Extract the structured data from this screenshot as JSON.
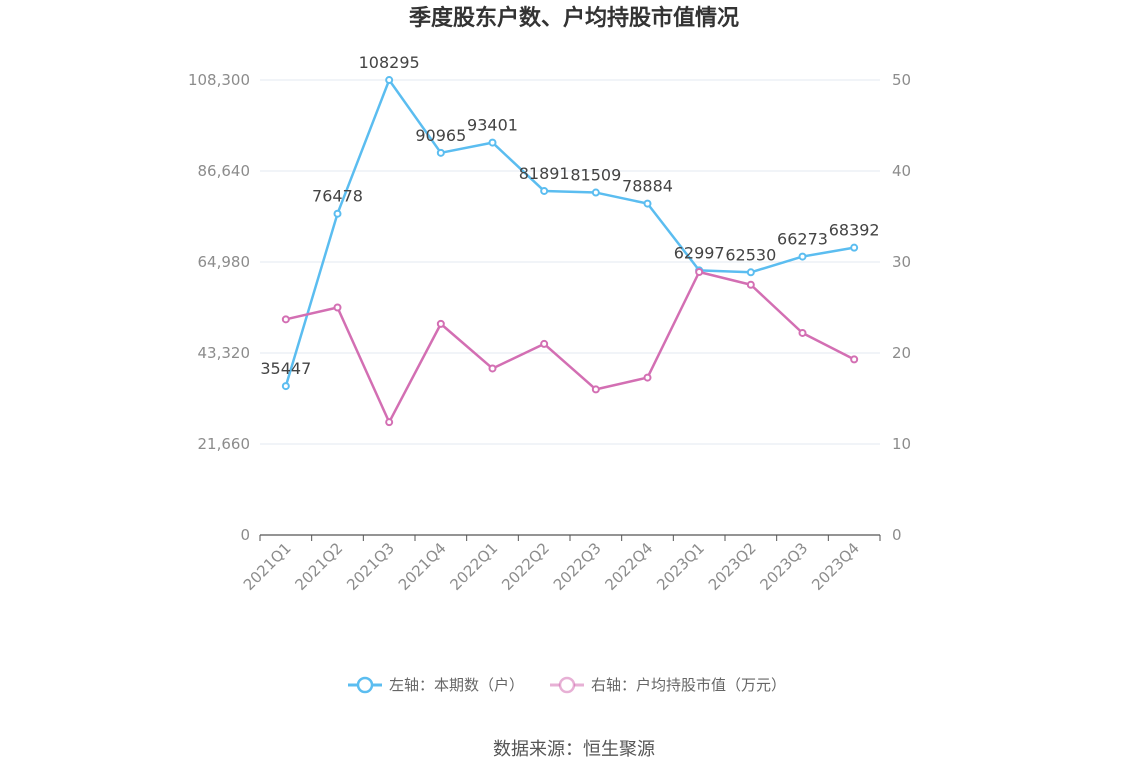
{
  "chart_data": {
    "type": "line",
    "title": "季度股东户数、户均持股市值情况",
    "categories": [
      "2021Q1",
      "2021Q2",
      "2021Q3",
      "2021Q4",
      "2022Q1",
      "2022Q2",
      "2022Q3",
      "2022Q4",
      "2023Q1",
      "2023Q2",
      "2023Q3",
      "2023Q4"
    ],
    "left_axis": {
      "ylim": [
        0,
        108300
      ],
      "ticks": [
        "0",
        "21,660",
        "43,320",
        "64,980",
        "86,640",
        "108,300"
      ]
    },
    "right_axis": {
      "ylim": [
        0,
        50
      ],
      "ticks": [
        "0",
        "10",
        "20",
        "30",
        "40",
        "50"
      ]
    },
    "series": [
      {
        "name": "左轴：本期数（户）",
        "axis": "left",
        "color": "#5bbdf0",
        "values": [
          35447,
          76478,
          108295,
          90965,
          93401,
          81891,
          81509,
          78884,
          62997,
          62530,
          66273,
          68392
        ],
        "labels": [
          "35447",
          "76478",
          "108295",
          "90965",
          "93401",
          "81891",
          "81509",
          "78884",
          "62997",
          "62530",
          "66273",
          "68392"
        ]
      },
      {
        "name": "右轴：户均持股市值（万元）",
        "axis": "right",
        "color": "#d36fb3",
        "values": [
          23.7,
          25.0,
          12.4,
          23.2,
          18.3,
          21.0,
          16.0,
          17.3,
          28.9,
          27.5,
          22.2,
          19.3
        ]
      }
    ],
    "grid": true,
    "legend_position": "bottom"
  },
  "source_text": "数据来源：恒生聚源"
}
